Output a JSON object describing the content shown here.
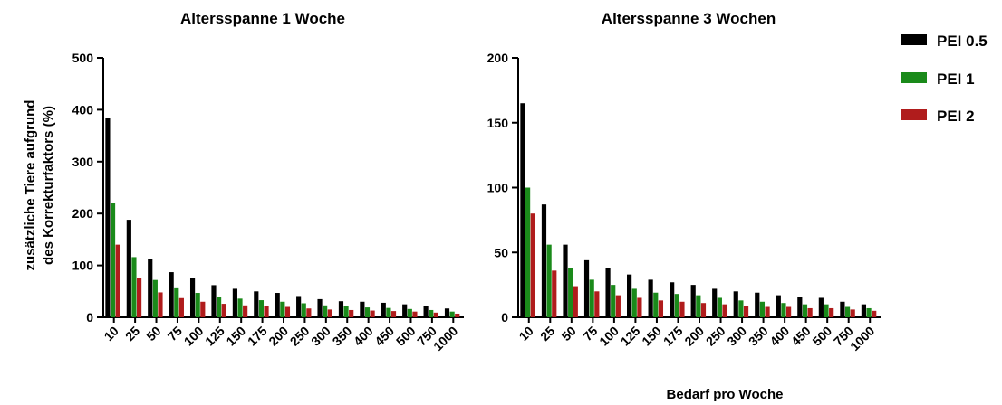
{
  "chart_data": [
    {
      "type": "bar",
      "title": "Altersspanne 1 Woche",
      "ylabel_lines": [
        "zusätzliche Tiere aufgrund",
        "des Korrekturfaktors (%)"
      ],
      "xlabel": "",
      "ylim": [
        0,
        500
      ],
      "yticks": [
        0,
        100,
        200,
        300,
        400,
        500
      ],
      "categories": [
        "10",
        "25",
        "50",
        "75",
        "100",
        "125",
        "150",
        "175",
        "200",
        "250",
        "300",
        "350",
        "400",
        "450",
        "500",
        "750",
        "1000"
      ],
      "series": [
        {
          "name": "PEI 0.5",
          "color": "#000000",
          "values": [
            385,
            188,
            113,
            87,
            75,
            62,
            55,
            50,
            47,
            41,
            35,
            31,
            30,
            28,
            25,
            22,
            17
          ]
        },
        {
          "name": "PEI 1",
          "color": "#1a8a1a",
          "values": [
            221,
            116,
            72,
            56,
            47,
            40,
            36,
            33,
            30,
            27,
            23,
            21,
            19,
            18,
            16,
            14,
            11
          ]
        },
        {
          "name": "PEI 2",
          "color": "#b01c1c",
          "values": [
            140,
            76,
            48,
            37,
            30,
            26,
            23,
            21,
            20,
            17,
            15,
            14,
            13,
            12,
            11,
            9,
            7
          ]
        }
      ]
    },
    {
      "type": "bar",
      "title": "Altersspanne 3 Wochen",
      "xlabel": "Bedarf pro Woche",
      "ylabel": "",
      "ylim": [
        0,
        200
      ],
      "yticks": [
        0,
        50,
        100,
        150,
        200
      ],
      "categories": [
        "10",
        "25",
        "50",
        "75",
        "100",
        "125",
        "150",
        "175",
        "200",
        "250",
        "300",
        "350",
        "400",
        "450",
        "500",
        "750",
        "1000"
      ],
      "series": [
        {
          "name": "PEI 0.5",
          "color": "#000000",
          "values": [
            165,
            87,
            56,
            44,
            38,
            33,
            29,
            27,
            25,
            22,
            20,
            19,
            17,
            16,
            15,
            12,
            10
          ]
        },
        {
          "name": "PEI 1",
          "color": "#1a8a1a",
          "values": [
            100,
            56,
            38,
            29,
            25,
            22,
            19,
            18,
            17,
            15,
            13,
            12,
            11,
            10,
            10,
            8,
            7
          ]
        },
        {
          "name": "PEI 2",
          "color": "#b01c1c",
          "values": [
            80,
            36,
            24,
            20,
            17,
            15,
            13,
            12,
            11,
            10,
            9,
            8,
            8,
            7,
            7,
            6,
            5
          ]
        }
      ]
    }
  ],
  "legend": {
    "items": [
      {
        "label": "PEI 0.5",
        "color": "#000000"
      },
      {
        "label": "PEI 1",
        "color": "#1a8a1a"
      },
      {
        "label": "PEI 2",
        "color": "#b01c1c"
      }
    ]
  }
}
